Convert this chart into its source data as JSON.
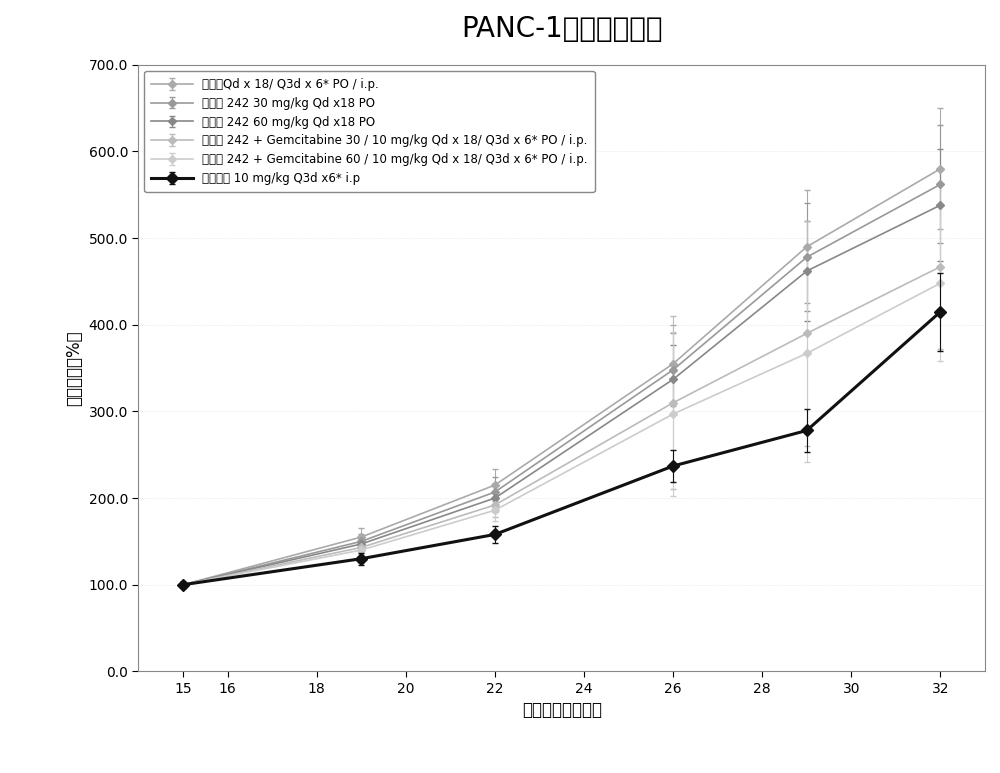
{
  "title": "PANC-1肿瘤生长抑制",
  "xlabel": "肿瘤接种后的天数",
  "ylabel": "肿瘤生长（%）",
  "xlim": [
    14,
    33
  ],
  "ylim": [
    0.0,
    700.0
  ],
  "xticks": [
    15,
    16,
    18,
    20,
    22,
    24,
    26,
    28,
    30,
    32
  ],
  "ytick_vals": [
    0.0,
    100.0,
    200.0,
    300.0,
    400.0,
    500.0,
    600.0,
    700.0
  ],
  "ytick_labels": [
    "0.0",
    "100.0",
    "200.0",
    "300.0",
    "400.0",
    "500.0",
    "600.0",
    "700.0"
  ],
  "x_days": [
    15,
    19,
    22,
    26,
    29,
    32
  ],
  "series": [
    {
      "label": "媒介物Qd x 18/ Q3d x 6* PO / i.p.",
      "y": [
        100,
        155,
        215,
        355,
        490,
        580
      ],
      "yerr": [
        3,
        10,
        18,
        45,
        65,
        70
      ],
      "color": "#aaaaaa",
      "marker": "D",
      "linestyle": "-",
      "linewidth": 1.2,
      "markersize": 4,
      "zorder": 2
    },
    {
      "label": "化合物 242 30 mg/kg Qd x18 PO",
      "y": [
        100,
        150,
        207,
        348,
        478,
        562
      ],
      "yerr": [
        3,
        9,
        17,
        42,
        62,
        68
      ],
      "color": "#999999",
      "marker": "D",
      "linestyle": "-",
      "linewidth": 1.2,
      "markersize": 4,
      "zorder": 2
    },
    {
      "label": "化合物 242 60 mg/kg Qd x18 PO",
      "y": [
        100,
        147,
        200,
        337,
        462,
        538
      ],
      "yerr": [
        3,
        9,
        16,
        40,
        58,
        65
      ],
      "color": "#888888",
      "marker": "D",
      "linestyle": "-",
      "linewidth": 1.2,
      "markersize": 4,
      "zorder": 2
    },
    {
      "label": "化合物 242 + Gemcitabine 30 / 10 mg/kg Qd x 18/ Q3d x 6* PO / i.p.",
      "y": [
        100,
        143,
        192,
        310,
        390,
        467
      ],
      "yerr": [
        3,
        8,
        14,
        100,
        130,
        95
      ],
      "color": "#bbbbbb",
      "marker": "D",
      "linestyle": "-",
      "linewidth": 1.2,
      "markersize": 4,
      "zorder": 2
    },
    {
      "label": "化合物 242 + Gemcitabine 60 / 10 mg/kg Qd x 18/ Q3d x 6* PO / i.p.",
      "y": [
        100,
        140,
        186,
        297,
        367,
        448
      ],
      "yerr": [
        3,
        7,
        13,
        95,
        125,
        90
      ],
      "color": "#cccccc",
      "marker": "D",
      "linestyle": "-",
      "linewidth": 1.2,
      "markersize": 4,
      "zorder": 2
    },
    {
      "label": "吉西他滨 10 mg/kg Q3d x6* i.p",
      "y": [
        100,
        130,
        158,
        237,
        278,
        415
      ],
      "yerr": [
        3,
        7,
        10,
        18,
        25,
        45
      ],
      "color": "#111111",
      "marker": "D",
      "linestyle": "-",
      "linewidth": 2.2,
      "markersize": 6,
      "zorder": 5
    }
  ],
  "background_color": "#ffffff",
  "title_fontsize": 20,
  "axis_label_fontsize": 12,
  "tick_fontsize": 10,
  "legend_fontsize": 8.5
}
